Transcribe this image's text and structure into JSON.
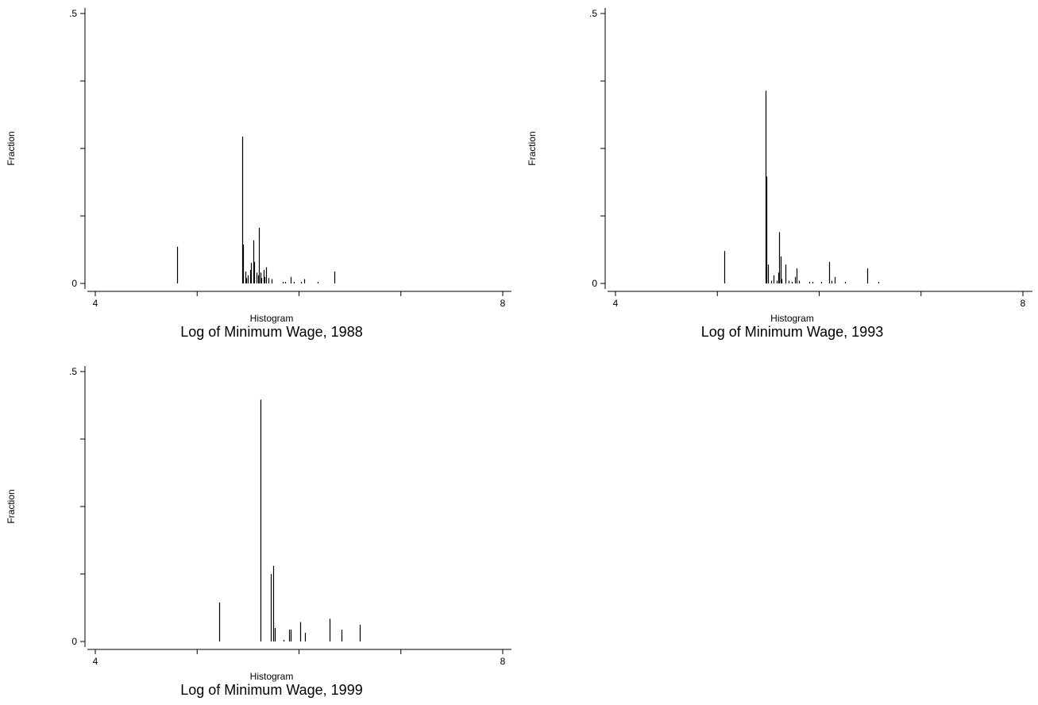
{
  "chart_data": [
    {
      "type": "bar",
      "title": "Log of Minimum Wage, 1988",
      "xlabel": "Histogram",
      "ylabel": "Fraction",
      "xlim": [
        4,
        8
      ],
      "ylim": [
        0,
        0.5
      ],
      "x_ticks": [
        4,
        5,
        6,
        7,
        8
      ],
      "x_tick_labels": [
        "4",
        "",
        "",
        "",
        "8"
      ],
      "y_ticks": [
        0,
        0.125,
        0.25,
        0.375,
        0.5
      ],
      "y_tick_labels": [
        "0",
        "",
        "",
        "",
        ".5"
      ],
      "grid": false,
      "x": [
        4.8,
        5.44,
        5.45,
        5.47,
        5.48,
        5.5,
        5.52,
        5.53,
        5.55,
        5.56,
        5.58,
        5.6,
        5.61,
        5.62,
        5.63,
        5.65,
        5.66,
        5.68,
        5.7,
        5.73,
        5.84,
        5.86,
        5.92,
        5.95,
        6.02,
        6.05,
        6.18,
        6.35
      ],
      "values": [
        0.068,
        0.272,
        0.072,
        0.022,
        0.01,
        0.015,
        0.025,
        0.038,
        0.08,
        0.04,
        0.02,
        0.015,
        0.103,
        0.02,
        0.01,
        0.025,
        0.012,
        0.03,
        0.01,
        0.008,
        0.003,
        0.003,
        0.012,
        0.003,
        0.003,
        0.008,
        0.003,
        0.022
      ]
    },
    {
      "type": "bar",
      "title": "Log of Minimum Wage, 1993",
      "xlabel": "Histogram",
      "ylabel": "Fraction",
      "xlim": [
        4,
        8
      ],
      "ylim": [
        0,
        0.5
      ],
      "x_ticks": [
        4,
        5,
        6,
        7,
        8
      ],
      "x_tick_labels": [
        "4",
        "",
        "",
        "",
        "8"
      ],
      "y_ticks": [
        0,
        0.125,
        0.25,
        0.375,
        0.5
      ],
      "y_tick_labels": [
        "0",
        "",
        "",
        "",
        ".5"
      ],
      "grid": false,
      "x": [
        5.07,
        5.47,
        5.48,
        5.5,
        5.53,
        5.55,
        5.58,
        5.6,
        5.61,
        5.62,
        5.63,
        5.67,
        5.7,
        5.73,
        5.76,
        5.78,
        5.8,
        5.9,
        5.93,
        6.02,
        6.1,
        6.12,
        6.15,
        6.25,
        6.47,
        6.58
      ],
      "values": [
        0.06,
        0.357,
        0.198,
        0.035,
        0.005,
        0.015,
        0.005,
        0.02,
        0.095,
        0.05,
        0.008,
        0.035,
        0.005,
        0.003,
        0.012,
        0.028,
        0.005,
        0.003,
        0.003,
        0.003,
        0.04,
        0.005,
        0.012,
        0.003,
        0.028,
        0.003
      ]
    },
    {
      "type": "bar",
      "title": "Log of Minimum Wage, 1999",
      "xlabel": "Histogram",
      "ylabel": "Fraction",
      "xlim": [
        4,
        8
      ],
      "ylim": [
        0,
        0.5
      ],
      "x_ticks": [
        4,
        5,
        6,
        7,
        8
      ],
      "x_tick_labels": [
        "4",
        "",
        "",
        "",
        "8"
      ],
      "y_ticks": [
        0,
        0.125,
        0.25,
        0.375,
        0.5
      ],
      "y_tick_labels": [
        "0",
        "",
        "",
        "",
        ".5"
      ],
      "grid": false,
      "x": [
        5.22,
        5.62,
        5.72,
        5.75,
        5.76,
        5.85,
        5.9,
        5.92,
        6.01,
        6.06,
        6.3,
        6.42,
        6.6
      ],
      "values": [
        0.072,
        0.448,
        0.125,
        0.14,
        0.025,
        0.003,
        0.022,
        0.022,
        0.036,
        0.016,
        0.042,
        0.022,
        0.031
      ]
    }
  ]
}
